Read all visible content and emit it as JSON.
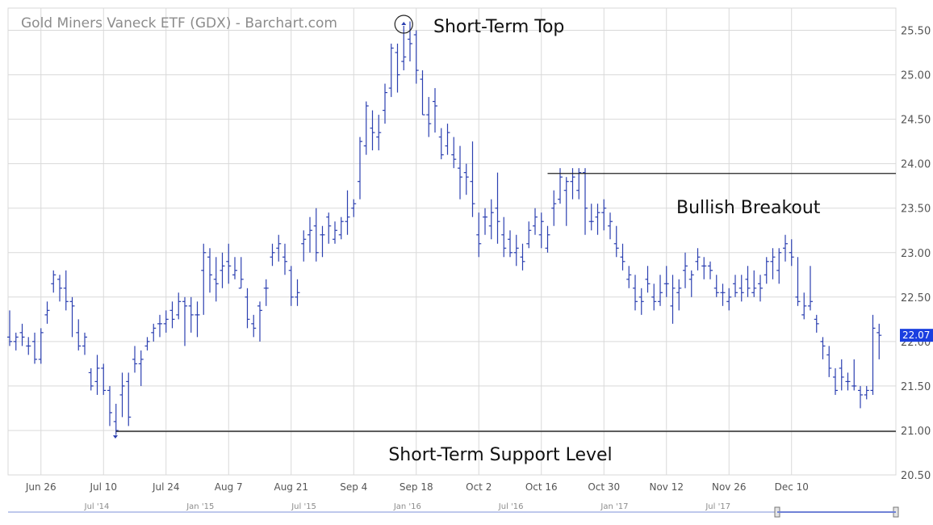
{
  "chart_data": {
    "type": "ohlc-bar",
    "title": "Gold Miners Vaneck ETF (GDX) - Barchart.com",
    "ylim": [
      20.5,
      25.75
    ],
    "y_ticks": [
      "20.50",
      "21.00",
      "21.50",
      "22.00",
      "22.50",
      "23.00",
      "23.50",
      "24.00",
      "24.50",
      "25.00",
      "25.50"
    ],
    "x_tick_labels": [
      {
        "label": "Jun 26",
        "index": 5
      },
      {
        "label": "Jul 10",
        "index": 15
      },
      {
        "label": "Jul 24",
        "index": 25
      },
      {
        "label": "Aug 7",
        "index": 35
      },
      {
        "label": "Aug 21",
        "index": 45
      },
      {
        "label": "Sep 4",
        "index": 55
      },
      {
        "label": "Sep 18",
        "index": 65
      },
      {
        "label": "Oct 2",
        "index": 75
      },
      {
        "label": "Oct 16",
        "index": 85
      },
      {
        "label": "Oct 30",
        "index": 95
      },
      {
        "label": "Nov 12",
        "index": 105
      },
      {
        "label": "Nov 26",
        "index": 115
      },
      {
        "label": "Dec 10",
        "index": 125
      }
    ],
    "last_price": "22.07",
    "colors": {
      "bars": "#2b3fb0",
      "grid": "#d9d9d9",
      "level_lines": "#222222",
      "price_badge": "#1a3fe0",
      "navigator": "#a9b6e6"
    },
    "series": [
      {
        "ohlc": [
          [
            22.05,
            22.35,
            21.95,
            22.0
          ],
          [
            22.0,
            22.1,
            21.9,
            22.05
          ],
          [
            22.1,
            22.2,
            21.95,
            22.05
          ],
          [
            21.95,
            22.05,
            21.85,
            21.95
          ],
          [
            22.0,
            22.1,
            21.75,
            21.8
          ],
          [
            21.8,
            22.15,
            21.75,
            22.1
          ],
          [
            22.3,
            22.45,
            22.2,
            22.35
          ],
          [
            22.65,
            22.8,
            22.55,
            22.75
          ],
          [
            22.7,
            22.75,
            22.45,
            22.6
          ],
          [
            22.6,
            22.8,
            22.35,
            22.45
          ],
          [
            22.45,
            22.5,
            22.05,
            22.4
          ],
          [
            22.1,
            22.25,
            21.9,
            21.95
          ],
          [
            21.95,
            22.1,
            21.85,
            22.05
          ],
          [
            21.65,
            21.7,
            21.45,
            21.5
          ],
          [
            21.55,
            21.85,
            21.4,
            21.7
          ],
          [
            21.7,
            21.75,
            21.4,
            21.45
          ],
          [
            21.45,
            21.5,
            21.05,
            21.2
          ],
          [
            21.1,
            21.3,
            20.95,
            21.0
          ],
          [
            21.4,
            21.65,
            21.15,
            21.5
          ],
          [
            21.55,
            21.65,
            21.05,
            21.15
          ],
          [
            21.8,
            21.95,
            21.65,
            21.75
          ],
          [
            21.75,
            21.9,
            21.5,
            21.8
          ],
          [
            21.95,
            22.05,
            21.9,
            22.0
          ],
          [
            22.1,
            22.2,
            22.0,
            22.15
          ],
          [
            22.2,
            22.3,
            22.05,
            22.2
          ],
          [
            22.2,
            22.35,
            22.1,
            22.25
          ],
          [
            22.35,
            22.45,
            22.15,
            22.25
          ],
          [
            22.3,
            22.55,
            22.25,
            22.45
          ],
          [
            22.45,
            22.5,
            21.95,
            22.4
          ],
          [
            22.4,
            22.5,
            22.1,
            22.3
          ],
          [
            22.3,
            22.45,
            22.05,
            22.3
          ],
          [
            22.8,
            23.1,
            22.3,
            23.0
          ],
          [
            22.95,
            23.05,
            22.55,
            22.75
          ],
          [
            22.7,
            22.95,
            22.45,
            22.65
          ],
          [
            22.8,
            23.0,
            22.6,
            22.85
          ],
          [
            22.9,
            23.1,
            22.65,
            22.85
          ],
          [
            22.75,
            22.95,
            22.7,
            22.8
          ],
          [
            22.6,
            22.95,
            22.6,
            22.7
          ],
          [
            22.5,
            22.6,
            22.15,
            22.25
          ],
          [
            22.2,
            22.3,
            22.05,
            22.15
          ],
          [
            22.4,
            22.45,
            22.0,
            22.35
          ],
          [
            22.6,
            22.7,
            22.4,
            22.6
          ],
          [
            22.95,
            23.1,
            22.85,
            23.0
          ],
          [
            23.05,
            23.2,
            22.9,
            23.1
          ],
          [
            22.95,
            23.1,
            22.75,
            22.9
          ],
          [
            22.8,
            22.85,
            22.4,
            22.5
          ],
          [
            22.5,
            22.7,
            22.4,
            22.55
          ],
          [
            23.1,
            23.25,
            22.9,
            23.15
          ],
          [
            23.2,
            23.4,
            23.0,
            23.25
          ],
          [
            23.3,
            23.5,
            22.9,
            23.0
          ],
          [
            23.2,
            23.3,
            22.95,
            23.2
          ],
          [
            23.4,
            23.45,
            23.1,
            23.3
          ],
          [
            23.15,
            23.35,
            23.1,
            23.25
          ],
          [
            23.2,
            23.4,
            23.15,
            23.35
          ],
          [
            23.35,
            23.7,
            23.2,
            23.4
          ],
          [
            23.5,
            23.6,
            23.4,
            23.55
          ],
          [
            23.8,
            24.3,
            23.6,
            24.25
          ],
          [
            24.2,
            24.7,
            24.1,
            24.65
          ],
          [
            24.4,
            24.6,
            24.15,
            24.35
          ],
          [
            24.3,
            24.55,
            24.15,
            24.35
          ],
          [
            24.6,
            24.9,
            24.45,
            24.8
          ],
          [
            24.85,
            25.35,
            24.75,
            25.3
          ],
          [
            25.25,
            25.35,
            24.8,
            25.0
          ],
          [
            25.15,
            25.55,
            25.05,
            25.2
          ],
          [
            25.4,
            25.6,
            25.15,
            25.35
          ],
          [
            25.45,
            25.5,
            24.9,
            25.05
          ],
          [
            24.95,
            25.05,
            24.55,
            24.55
          ],
          [
            24.55,
            24.75,
            24.3,
            24.45
          ],
          [
            24.7,
            24.85,
            24.35,
            24.65
          ],
          [
            24.3,
            24.4,
            24.05,
            24.1
          ],
          [
            24.2,
            24.45,
            24.1,
            24.35
          ],
          [
            24.1,
            24.3,
            23.95,
            24.05
          ],
          [
            23.95,
            24.2,
            23.6,
            23.85
          ],
          [
            23.9,
            24.0,
            23.65,
            23.85
          ],
          [
            23.8,
            24.25,
            23.4,
            23.55
          ],
          [
            23.2,
            23.45,
            22.95,
            23.1
          ],
          [
            23.4,
            23.5,
            23.2,
            23.4
          ],
          [
            23.3,
            23.6,
            23.15,
            23.45
          ],
          [
            23.5,
            23.9,
            23.1,
            23.35
          ],
          [
            23.2,
            23.4,
            22.95,
            23.05
          ],
          [
            23.15,
            23.25,
            22.95,
            23.0
          ],
          [
            23.0,
            23.2,
            22.85,
            23.05
          ],
          [
            22.95,
            23.1,
            22.8,
            22.9
          ],
          [
            23.1,
            23.35,
            23.05,
            23.25
          ],
          [
            23.3,
            23.5,
            23.2,
            23.4
          ],
          [
            23.2,
            23.45,
            23.05,
            23.35
          ],
          [
            23.05,
            23.3,
            23.0,
            23.2
          ],
          [
            23.5,
            23.7,
            23.3,
            23.55
          ],
          [
            23.6,
            23.95,
            23.55,
            23.85
          ],
          [
            23.7,
            23.85,
            23.3,
            23.8
          ],
          [
            23.8,
            23.95,
            23.6,
            23.85
          ],
          [
            23.7,
            23.95,
            23.6,
            23.9
          ],
          [
            23.9,
            23.95,
            23.2,
            23.5
          ],
          [
            23.35,
            23.55,
            23.25,
            23.35
          ],
          [
            23.4,
            23.55,
            23.2,
            23.45
          ],
          [
            23.45,
            23.6,
            23.25,
            23.5
          ],
          [
            23.3,
            23.45,
            23.15,
            23.35
          ],
          [
            23.1,
            23.3,
            22.95,
            23.05
          ],
          [
            22.95,
            23.1,
            22.8,
            22.9
          ],
          [
            22.7,
            22.85,
            22.6,
            22.75
          ],
          [
            22.6,
            22.75,
            22.35,
            22.45
          ],
          [
            22.5,
            22.6,
            22.3,
            22.45
          ],
          [
            22.7,
            22.85,
            22.55,
            22.65
          ],
          [
            22.5,
            22.65,
            22.35,
            22.45
          ],
          [
            22.45,
            22.75,
            22.4,
            22.55
          ],
          [
            22.65,
            22.85,
            22.5,
            22.65
          ],
          [
            22.4,
            22.75,
            22.2,
            22.6
          ],
          [
            22.55,
            22.7,
            22.35,
            22.6
          ],
          [
            22.8,
            23.0,
            22.6,
            22.85
          ],
          [
            22.7,
            22.8,
            22.5,
            22.75
          ],
          [
            22.9,
            23.05,
            22.8,
            22.95
          ],
          [
            22.85,
            22.95,
            22.7,
            22.85
          ],
          [
            22.85,
            22.9,
            22.7,
            22.8
          ],
          [
            22.6,
            22.75,
            22.5,
            22.55
          ],
          [
            22.55,
            22.65,
            22.4,
            22.55
          ],
          [
            22.45,
            22.6,
            22.35,
            22.5
          ],
          [
            22.65,
            22.75,
            22.5,
            22.55
          ],
          [
            22.6,
            22.75,
            22.45,
            22.55
          ],
          [
            22.7,
            22.85,
            22.5,
            22.6
          ],
          [
            22.55,
            22.8,
            22.5,
            22.6
          ],
          [
            22.65,
            22.75,
            22.45,
            22.6
          ],
          [
            22.75,
            22.95,
            22.65,
            22.9
          ],
          [
            22.9,
            23.05,
            22.7,
            22.95
          ],
          [
            22.8,
            23.05,
            22.65,
            23.0
          ],
          [
            23.05,
            23.2,
            22.9,
            23.1
          ],
          [
            23.0,
            23.15,
            22.85,
            22.95
          ],
          [
            22.5,
            22.95,
            22.4,
            22.45
          ],
          [
            22.3,
            22.55,
            22.25,
            22.4
          ],
          [
            22.4,
            22.85,
            22.35,
            22.45
          ],
          [
            22.25,
            22.3,
            22.1,
            22.2
          ],
          [
            22.0,
            22.05,
            21.8,
            21.95
          ],
          [
            21.85,
            21.95,
            21.6,
            21.7
          ],
          [
            21.6,
            21.7,
            21.4,
            21.45
          ],
          [
            21.7,
            21.8,
            21.45,
            21.6
          ],
          [
            21.55,
            21.65,
            21.45,
            21.55
          ],
          [
            21.5,
            21.8,
            21.45,
            21.5
          ],
          [
            21.45,
            21.5,
            21.25,
            21.4
          ],
          [
            21.4,
            21.5,
            21.35,
            21.45
          ],
          [
            21.45,
            22.3,
            21.4,
            22.15
          ],
          [
            22.1,
            22.2,
            21.8,
            22.07
          ]
        ]
      }
    ],
    "levels": [
      {
        "name": "resistance",
        "value": 23.89,
        "from_index": 86
      },
      {
        "name": "support",
        "value": 20.99,
        "from_index": 17
      }
    ],
    "annotations": [
      {
        "text": "Short-Term Top",
        "anchor_index": 63,
        "value": 25.55
      },
      {
        "text": "Bullish Breakout",
        "anchor_index": 94,
        "value": 23.55
      },
      {
        "text": "Short-Term Support Level",
        "anchor_index": 68,
        "value": 20.75
      }
    ],
    "navigator": {
      "labels": [
        "Jul '14",
        "Jan '15",
        "Jul '15",
        "Jan '16",
        "Jul '16",
        "Jan '17",
        "Jul '17"
      ]
    }
  }
}
